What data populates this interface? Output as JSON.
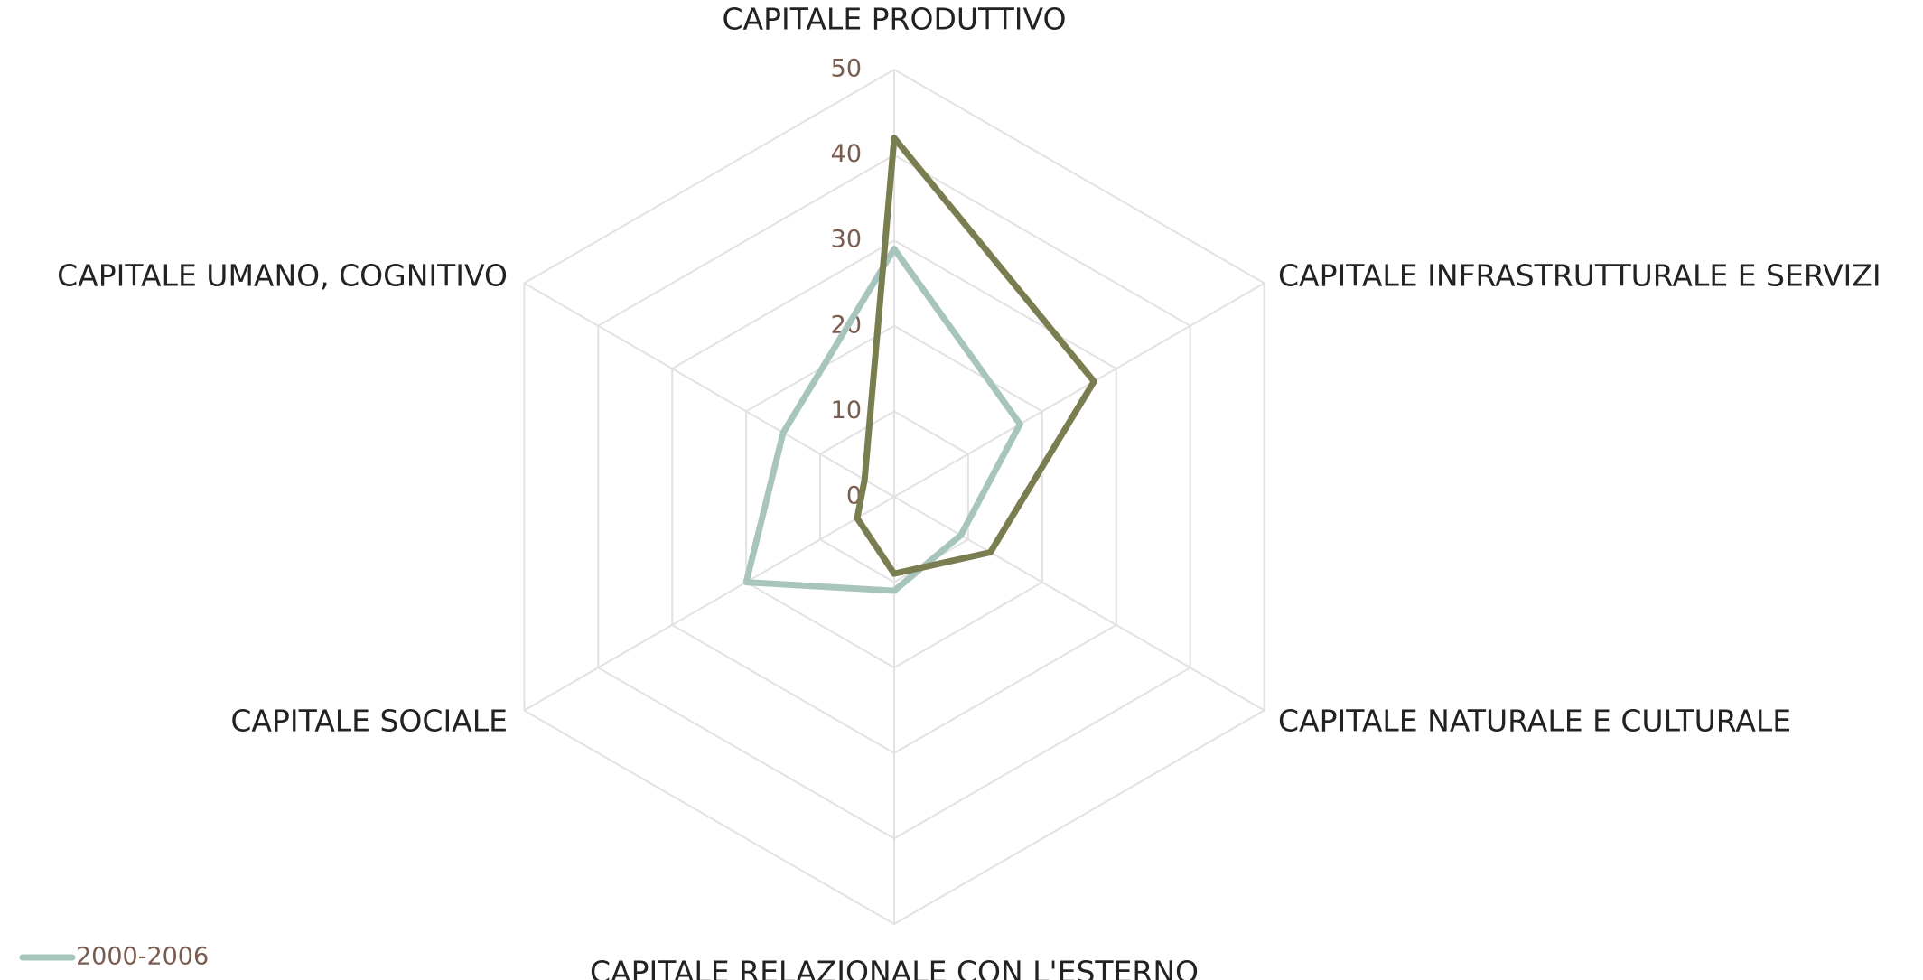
{
  "chart_data": {
    "type": "radar",
    "categories": [
      "CAPITALE PRODUTTIVO",
      "CAPITALE INFRASTRUTTURALE E SERVIZI",
      "CAPITALE NATURALE E CULTURALE",
      "CAPITALE RELAZIONALE CON L'ESTERNO",
      "CAPITALE SOCIALE",
      "CAPITALE UMANO, COGNITIVO"
    ],
    "series": [
      {
        "name": "2000-2006",
        "color": "#a8c5bd",
        "values": [
          29,
          17,
          9,
          11,
          20,
          15
        ]
      },
      {
        "color": "#7a7d4f",
        "values": [
          42,
          27,
          13,
          9,
          5,
          4
        ]
      }
    ],
    "ylim": [
      0,
      50
    ],
    "yticks": [
      0,
      10,
      20,
      30,
      40,
      50
    ],
    "grid": true,
    "legend": "bottom-left"
  }
}
